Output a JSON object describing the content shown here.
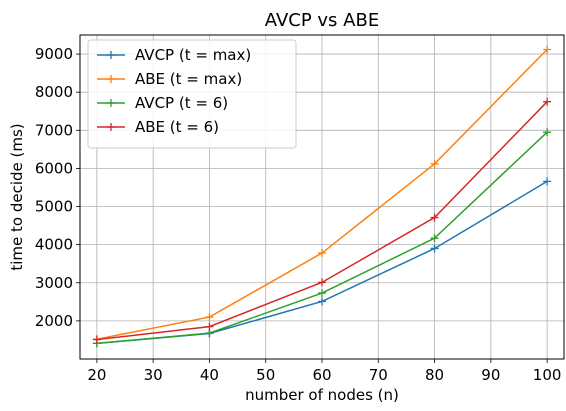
{
  "chart_data": {
    "type": "line",
    "title": "AVCP vs ABE",
    "xlabel": "number of nodes (n)",
    "ylabel": "time to decide (ms)",
    "x": [
      20,
      40,
      60,
      80,
      100
    ],
    "xlim": [
      17,
      103
    ],
    "ylim": [
      1000,
      9500
    ],
    "xticks": [
      20,
      30,
      40,
      50,
      60,
      70,
      80,
      90,
      100
    ],
    "yticks": [
      2000,
      3000,
      4000,
      5000,
      6000,
      7000,
      8000,
      9000
    ],
    "grid": true,
    "legend_position": "top-left",
    "marker": "+",
    "series": [
      {
        "name": "AVCP (t = max)",
        "color": "#1f77b4",
        "values": [
          1410,
          1670,
          2510,
          3900,
          5660
        ]
      },
      {
        "name": "ABE (t = max)",
        "color": "#ff7f0e",
        "values": [
          1520,
          2100,
          3780,
          6120,
          9120
        ]
      },
      {
        "name": "AVCP (t = 6)",
        "color": "#2ca02c",
        "values": [
          1410,
          1680,
          2730,
          4170,
          6950
        ]
      },
      {
        "name": "ABE (t = 6)",
        "color": "#d62728",
        "values": [
          1510,
          1850,
          3010,
          4710,
          7750
        ]
      }
    ]
  }
}
